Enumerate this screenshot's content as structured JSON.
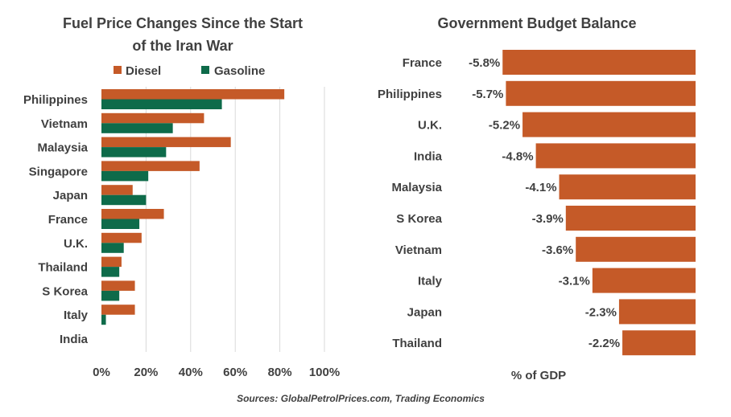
{
  "colors": {
    "diesel": "#C55A28",
    "gasoline": "#0E6B4A",
    "bar": "#C55A28",
    "grid": "#D9D9D9",
    "text": "#404040"
  },
  "source": "Sources: GlobalPetrolPrices.com, Trading Economics",
  "chart_data": [
    {
      "type": "bar",
      "orientation": "horizontal",
      "title": "Fuel Price Changes Since the Start of the Iran War",
      "title_lines": [
        "Fuel Price Changes Since the Start",
        "of the Iran War"
      ],
      "categories": [
        "Philippines",
        "Vietnam",
        "Malaysia",
        "Singapore",
        "Japan",
        "France",
        "U.K.",
        "Thailand",
        "S Korea",
        "Italy",
        "India"
      ],
      "series": [
        {
          "name": "Diesel",
          "values": [
            82,
            46,
            58,
            44,
            14,
            28,
            18,
            9,
            15,
            15,
            0
          ]
        },
        {
          "name": "Gasoline",
          "values": [
            54,
            32,
            29,
            21,
            20,
            17,
            10,
            8,
            8,
            2,
            0
          ]
        }
      ],
      "xlim": [
        0,
        100
      ],
      "xticks": [
        0,
        20,
        40,
        60,
        80,
        100
      ],
      "xtick_labels": [
        "0%",
        "20%",
        "40%",
        "60%",
        "80%",
        "100%"
      ],
      "grid": true,
      "legend": "top"
    },
    {
      "type": "bar",
      "orientation": "horizontal",
      "title": "Government Budget Balance",
      "categories": [
        "France",
        "Philippines",
        "U.K.",
        "India",
        "Malaysia",
        "S Korea",
        "Vietnam",
        "Italy",
        "Japan",
        "Thailand"
      ],
      "values": [
        -5.8,
        -5.7,
        -5.2,
        -4.8,
        -4.1,
        -3.9,
        -3.6,
        -3.1,
        -2.3,
        -2.2
      ],
      "data_labels": [
        "-5.8%",
        "-5.7%",
        "-5.2%",
        "-4.8%",
        "-4.1%",
        "-3.9%",
        "-3.6%",
        "-3.1%",
        "-2.3%",
        "-2.2%"
      ],
      "xlabel": "% of GDP",
      "xlim": [
        -6,
        0
      ],
      "grid": false
    }
  ]
}
